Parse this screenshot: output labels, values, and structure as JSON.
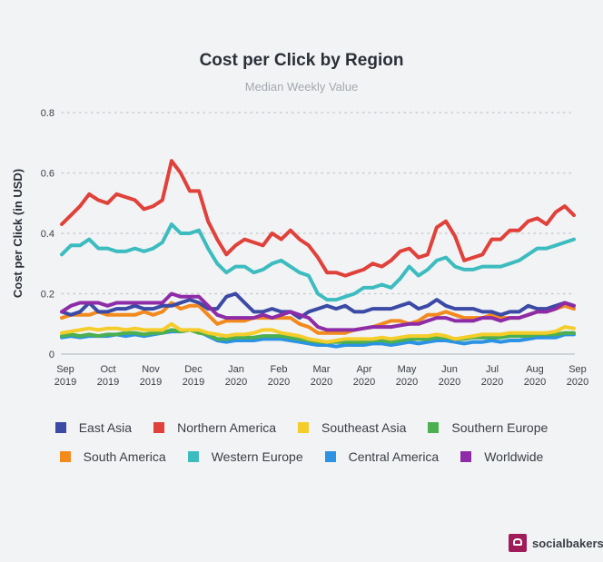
{
  "chart_data": {
    "type": "line",
    "title": "Cost per Click by Region",
    "subtitle": "Median Weekly Value",
    "xlabel": "",
    "ylabel": "Cost per Click (in USD)",
    "ylim": [
      0,
      0.8
    ],
    "yticks": [
      "0",
      "0.2",
      "0.4",
      "0.6",
      "0.8"
    ],
    "yticks_values": [
      0,
      0.2,
      0.4,
      0.6,
      0.8
    ],
    "xticks": [
      {
        "month": "Sep",
        "year": "2019"
      },
      {
        "month": "Oct",
        "year": "2019"
      },
      {
        "month": "Nov",
        "year": "2019"
      },
      {
        "month": "Dec",
        "year": "2019"
      },
      {
        "month": "Jan",
        "year": "2020"
      },
      {
        "month": "Feb",
        "year": "2020"
      },
      {
        "month": "Mar",
        "year": "2020"
      },
      {
        "month": "Apr",
        "year": "2020"
      },
      {
        "month": "May",
        "year": "2020"
      },
      {
        "month": "Jun",
        "year": "2020"
      },
      {
        "month": "Jul",
        "year": "2020"
      },
      {
        "month": "Aug",
        "year": "2020"
      },
      {
        "month": "Sep",
        "year": "2020"
      }
    ],
    "grid": true,
    "legend_position": "bottom",
    "x_interval": "weekly, Sep 2019 to Sep 2020",
    "series": [
      {
        "name": "Northern America",
        "color": "#e0413a",
        "values": [
          0.43,
          0.46,
          0.49,
          0.53,
          0.51,
          0.5,
          0.53,
          0.52,
          0.51,
          0.48,
          0.49,
          0.51,
          0.64,
          0.6,
          0.54,
          0.54,
          0.44,
          0.38,
          0.33,
          0.36,
          0.38,
          0.37,
          0.36,
          0.4,
          0.38,
          0.41,
          0.38,
          0.36,
          0.32,
          0.27,
          0.27,
          0.26,
          0.27,
          0.28,
          0.3,
          0.29,
          0.31,
          0.34,
          0.35,
          0.32,
          0.33,
          0.42,
          0.44,
          0.39,
          0.31,
          0.32,
          0.33,
          0.38,
          0.38,
          0.41,
          0.41,
          0.44,
          0.45,
          0.43,
          0.47,
          0.49,
          0.46
        ]
      },
      {
        "name": "Western Europe",
        "color": "#3dbcc0",
        "values": [
          0.33,
          0.36,
          0.36,
          0.38,
          0.35,
          0.35,
          0.34,
          0.34,
          0.35,
          0.34,
          0.35,
          0.37,
          0.43,
          0.4,
          0.4,
          0.41,
          0.35,
          0.3,
          0.27,
          0.29,
          0.29,
          0.27,
          0.28,
          0.3,
          0.31,
          0.29,
          0.27,
          0.26,
          0.2,
          0.18,
          0.18,
          0.19,
          0.2,
          0.22,
          0.22,
          0.23,
          0.22,
          0.25,
          0.29,
          0.26,
          0.28,
          0.31,
          0.32,
          0.29,
          0.28,
          0.28,
          0.29,
          0.29,
          0.29,
          0.3,
          0.31,
          0.33,
          0.35,
          0.35,
          0.36,
          0.37,
          0.38
        ]
      },
      {
        "name": "Worldwide",
        "color": "#8e2ca8",
        "values": [
          0.14,
          0.16,
          0.17,
          0.17,
          0.17,
          0.16,
          0.17,
          0.17,
          0.17,
          0.17,
          0.17,
          0.17,
          0.2,
          0.19,
          0.19,
          0.19,
          0.16,
          0.13,
          0.12,
          0.12,
          0.12,
          0.12,
          0.13,
          0.12,
          0.13,
          0.14,
          0.13,
          0.12,
          0.09,
          0.08,
          0.08,
          0.08,
          0.08,
          0.085,
          0.09,
          0.09,
          0.09,
          0.095,
          0.1,
          0.1,
          0.11,
          0.12,
          0.12,
          0.11,
          0.11,
          0.11,
          0.12,
          0.12,
          0.11,
          0.12,
          0.12,
          0.13,
          0.14,
          0.14,
          0.15,
          0.17,
          0.16
        ]
      },
      {
        "name": "East Asia",
        "color": "#3b4aa5",
        "values": [
          0.14,
          0.13,
          0.14,
          0.17,
          0.14,
          0.14,
          0.15,
          0.15,
          0.16,
          0.15,
          0.15,
          0.16,
          0.16,
          0.17,
          0.18,
          0.17,
          0.15,
          0.15,
          0.19,
          0.2,
          0.17,
          0.14,
          0.14,
          0.15,
          0.14,
          0.14,
          0.12,
          0.14,
          0.15,
          0.16,
          0.15,
          0.16,
          0.14,
          0.14,
          0.15,
          0.15,
          0.15,
          0.16,
          0.17,
          0.15,
          0.16,
          0.18,
          0.16,
          0.15,
          0.15,
          0.15,
          0.14,
          0.14,
          0.13,
          0.14,
          0.14,
          0.16,
          0.15,
          0.15,
          0.16,
          0.17,
          0.16
        ]
      },
      {
        "name": "South America",
        "color": "#f28a1d",
        "values": [
          0.12,
          0.13,
          0.13,
          0.13,
          0.14,
          0.13,
          0.13,
          0.13,
          0.13,
          0.14,
          0.13,
          0.14,
          0.17,
          0.15,
          0.16,
          0.16,
          0.13,
          0.1,
          0.11,
          0.11,
          0.11,
          0.12,
          0.12,
          0.12,
          0.12,
          0.12,
          0.1,
          0.09,
          0.07,
          0.07,
          0.07,
          0.07,
          0.08,
          0.085,
          0.09,
          0.1,
          0.11,
          0.11,
          0.1,
          0.11,
          0.13,
          0.13,
          0.14,
          0.13,
          0.12,
          0.12,
          0.12,
          0.13,
          0.12,
          0.12,
          0.12,
          0.13,
          0.14,
          0.14,
          0.15,
          0.16,
          0.15
        ]
      },
      {
        "name": "Southeast Asia",
        "color": "#f5cd2a",
        "values": [
          0.07,
          0.075,
          0.08,
          0.085,
          0.08,
          0.085,
          0.085,
          0.08,
          0.085,
          0.08,
          0.08,
          0.08,
          0.1,
          0.08,
          0.08,
          0.08,
          0.07,
          0.065,
          0.06,
          0.065,
          0.065,
          0.07,
          0.08,
          0.08,
          0.07,
          0.065,
          0.06,
          0.05,
          0.045,
          0.04,
          0.045,
          0.05,
          0.05,
          0.05,
          0.05,
          0.055,
          0.05,
          0.055,
          0.06,
          0.06,
          0.06,
          0.065,
          0.06,
          0.05,
          0.055,
          0.06,
          0.065,
          0.065,
          0.065,
          0.07,
          0.07,
          0.07,
          0.07,
          0.07,
          0.075,
          0.09,
          0.085
        ]
      },
      {
        "name": "Southern Europe",
        "color": "#4caf50",
        "values": [
          0.06,
          0.065,
          0.06,
          0.065,
          0.06,
          0.065,
          0.065,
          0.07,
          0.07,
          0.065,
          0.07,
          0.07,
          0.08,
          0.075,
          0.08,
          0.07,
          0.065,
          0.05,
          0.05,
          0.055,
          0.055,
          0.055,
          0.06,
          0.06,
          0.06,
          0.055,
          0.05,
          0.045,
          0.04,
          0.04,
          0.04,
          0.04,
          0.04,
          0.04,
          0.045,
          0.045,
          0.04,
          0.045,
          0.05,
          0.05,
          0.05,
          0.055,
          0.055,
          0.05,
          0.05,
          0.055,
          0.055,
          0.055,
          0.055,
          0.06,
          0.06,
          0.06,
          0.065,
          0.065,
          0.065,
          0.07,
          0.07
        ]
      },
      {
        "name": "Central America",
        "color": "#2b92e4",
        "values": [
          0.055,
          0.06,
          0.055,
          0.06,
          0.06,
          0.06,
          0.065,
          0.06,
          0.065,
          0.06,
          0.065,
          0.07,
          0.075,
          0.075,
          0.08,
          0.075,
          0.06,
          0.045,
          0.04,
          0.045,
          0.045,
          0.045,
          0.05,
          0.05,
          0.05,
          0.045,
          0.04,
          0.035,
          0.03,
          0.03,
          0.025,
          0.03,
          0.03,
          0.03,
          0.035,
          0.035,
          0.03,
          0.035,
          0.04,
          0.035,
          0.04,
          0.045,
          0.045,
          0.04,
          0.035,
          0.04,
          0.04,
          0.045,
          0.04,
          0.045,
          0.045,
          0.05,
          0.055,
          0.055,
          0.055,
          0.065,
          0.065
        ]
      }
    ],
    "legend_rows": [
      [
        "East Asia",
        "Northern America",
        "Southeast Asia",
        "Southern Europe"
      ],
      [
        "South America",
        "Western Europe",
        "Central America",
        "Worldwide"
      ]
    ]
  },
  "legend": {
    "row1": [
      {
        "label": "East Asia",
        "color": "#3b4aa5"
      },
      {
        "label": "Northern America",
        "color": "#e0413a"
      },
      {
        "label": "Southeast Asia",
        "color": "#f5cd2a"
      },
      {
        "label": "Southern Europe",
        "color": "#4caf50"
      }
    ],
    "row2": [
      {
        "label": "South America",
        "color": "#f28a1d"
      },
      {
        "label": "Western Europe",
        "color": "#3dbcc0"
      },
      {
        "label": "Central America",
        "color": "#2b92e4"
      },
      {
        "label": "Worldwide",
        "color": "#8e2ca8"
      }
    ]
  },
  "brand": {
    "name": "socialbakers",
    "logo_icon": "chef-hat-speech-bubble-icon",
    "logo_color": "#a01c59"
  }
}
